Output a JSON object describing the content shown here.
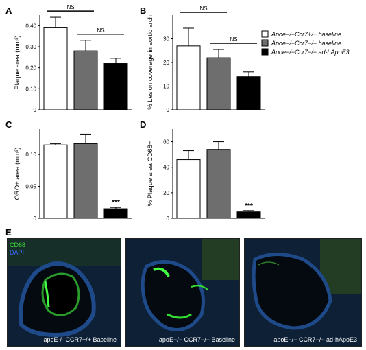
{
  "chart_data": [
    {
      "panel": "A",
      "type": "bar",
      "ylabel": "Plaque area (mm²)",
      "ylim": [
        0,
        0.45
      ],
      "yticks": [
        "0",
        "0.10",
        "0.20",
        "0.30",
        "0.40"
      ],
      "ytick_values": [
        0,
        0.1,
        0.2,
        0.3,
        0.4
      ],
      "values": [
        0.39,
        0.28,
        0.22
      ],
      "errors": [
        0.05,
        0.05,
        0.025
      ],
      "colors": [
        "#ffffff",
        "#6e6e6e",
        "#000000"
      ],
      "annotations": [
        {
          "text": "NS",
          "from": 0,
          "to": 1
        },
        {
          "text": "NS",
          "from": 1,
          "to": 2
        }
      ]
    },
    {
      "panel": "B",
      "type": "bar",
      "ylabel": "% Lesion coverage in aortic arch",
      "ylim": [
        0,
        40
      ],
      "yticks": [
        "0",
        "10",
        "20",
        "30"
      ],
      "ytick_values": [
        0,
        10,
        20,
        30
      ],
      "values": [
        27,
        22,
        14
      ],
      "errors": [
        7.5,
        3.5,
        2
      ],
      "colors": [
        "#ffffff",
        "#6e6e6e",
        "#000000"
      ],
      "annotations": [
        {
          "text": "NS",
          "from": 0,
          "to": 1
        },
        {
          "text": "NS",
          "from": 1,
          "to": 2
        }
      ]
    },
    {
      "panel": "C",
      "type": "bar",
      "ylabel": "ORO+ area (mm²)",
      "ylim": [
        0,
        0.14
      ],
      "yticks": [
        "0",
        "0.05",
        "0.10"
      ],
      "ytick_values": [
        0,
        0.05,
        0.1
      ],
      "values": [
        0.115,
        0.117,
        0.015
      ],
      "errors": [
        0.002,
        0.015,
        0.002
      ],
      "colors": [
        "#ffffff",
        "#6e6e6e",
        "#000000"
      ],
      "annotations": [
        {
          "text": "***",
          "bar": 2
        }
      ]
    },
    {
      "panel": "D",
      "type": "bar",
      "ylabel": "% Plaque area CD68+",
      "ylim": [
        0,
        70
      ],
      "yticks": [
        "0",
        "20",
        "40",
        "60"
      ],
      "ytick_values": [
        0,
        20,
        40,
        60
      ],
      "values": [
        46,
        54,
        5
      ],
      "errors": [
        7,
        6,
        1
      ],
      "colors": [
        "#ffffff",
        "#6e6e6e",
        "#000000"
      ],
      "annotations": [
        {
          "text": "***",
          "bar": 2
        }
      ]
    }
  ],
  "legend": [
    {
      "label": "Apoe−/−Ccr7+/+ baseline",
      "color": "#ffffff"
    },
    {
      "label": "Apoe−/−Ccr7−/− baseline",
      "color": "#6e6e6e"
    },
    {
      "label": "Apoe−/−Ccr7−/− ad-hApoE3",
      "color": "#000000"
    }
  ],
  "panel_letters": [
    "A",
    "B",
    "C",
    "D",
    "E"
  ],
  "micrographs": {
    "stain_labels": [
      {
        "text": "CD68",
        "color": "#3ddc3a"
      },
      {
        "text": "DAPI",
        "color": "#3a6bff"
      }
    ],
    "captions": [
      "apoE-/- CCR7+/+ Baseline",
      "apoE−/− CCR7−/− Baseline",
      "apoE−/− CCR7−/− ad-hApoE3"
    ]
  }
}
